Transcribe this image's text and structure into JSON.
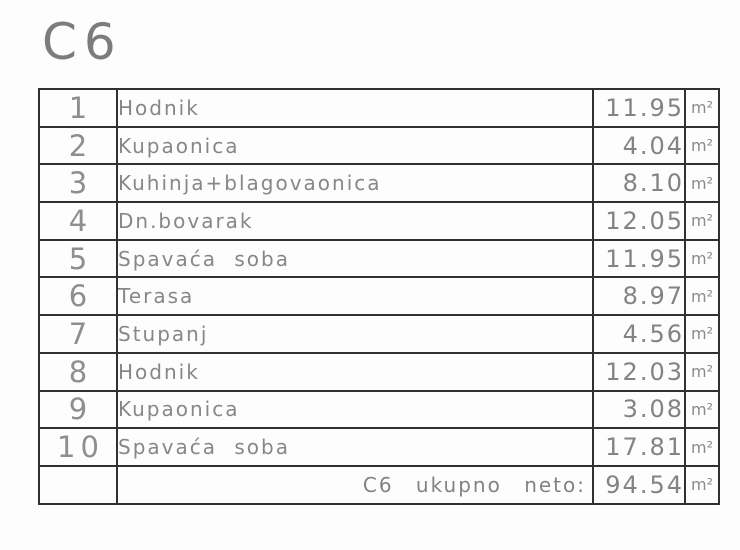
{
  "title": "C6",
  "table": {
    "rows": [
      {
        "num": "1",
        "name": "Hodnik",
        "area": "11.95",
        "unit": "m²"
      },
      {
        "num": "2",
        "name": "Kupaonica",
        "area": "4.04",
        "unit": "m²"
      },
      {
        "num": "3",
        "name": "Kuhinja+blagovaonica",
        "area": "8.10",
        "unit": "m²"
      },
      {
        "num": "4",
        "name": "Dn.bovarak",
        "area": "12.05",
        "unit": "m²"
      },
      {
        "num": "5",
        "name": "Spavaća soba",
        "area": "11.95",
        "unit": "m²"
      },
      {
        "num": "6",
        "name": "Terasa",
        "area": "8.97",
        "unit": "m²"
      },
      {
        "num": "7",
        "name": "Stupanj",
        "area": "4.56",
        "unit": "m²"
      },
      {
        "num": "8",
        "name": "Hodnik",
        "area": "12.03",
        "unit": "m²"
      },
      {
        "num": "9",
        "name": "Kupaonica",
        "area": "3.08",
        "unit": "m²"
      },
      {
        "num": "10",
        "name": "Spavaća soba",
        "area": "17.81",
        "unit": "m²"
      }
    ],
    "total": {
      "num": "",
      "label": "C6 ukupno neto:",
      "area": "94.54",
      "unit": "m²"
    }
  }
}
